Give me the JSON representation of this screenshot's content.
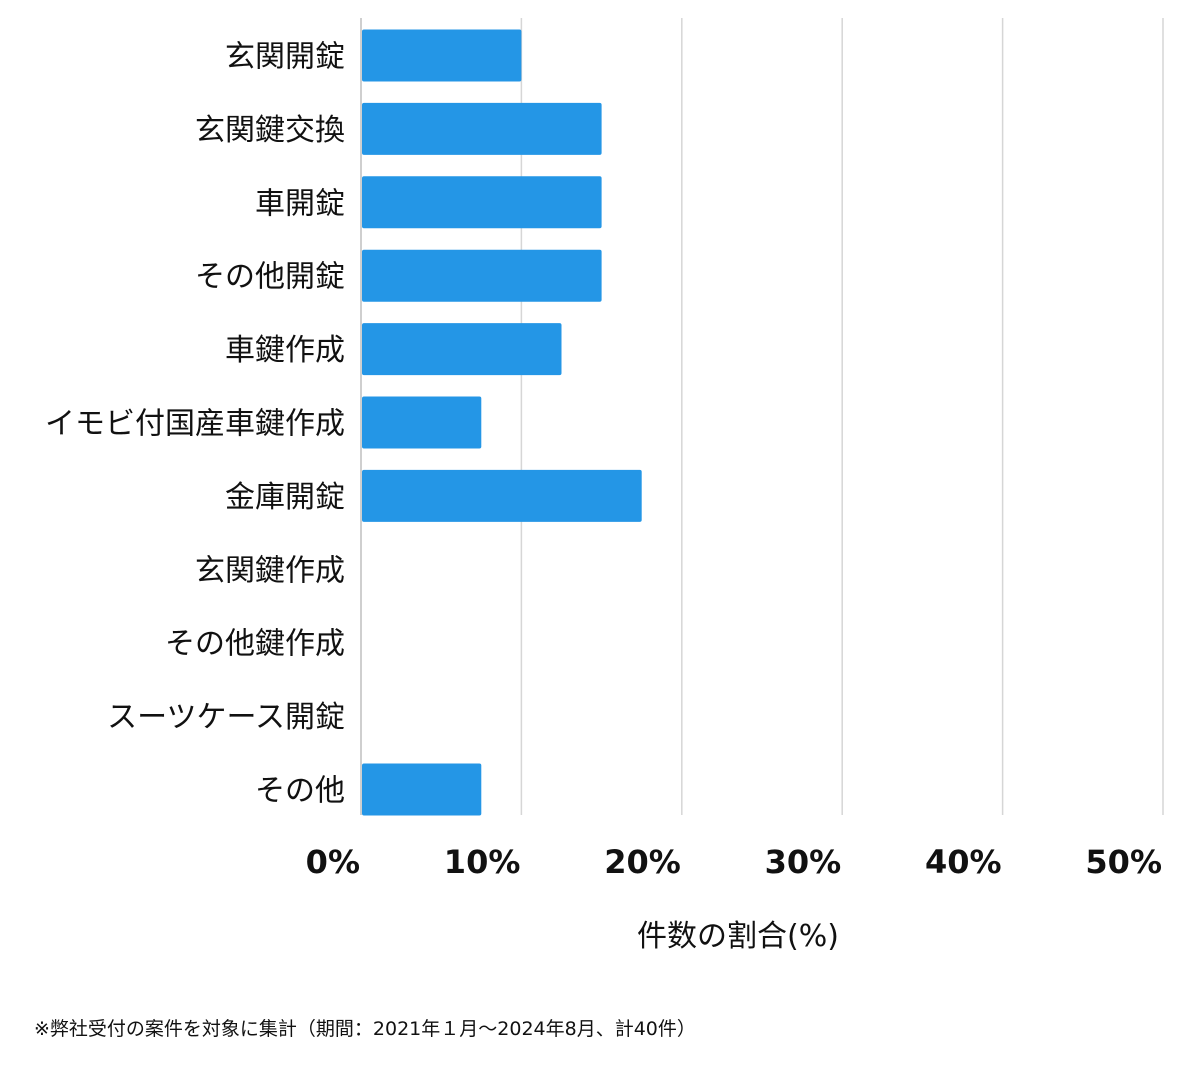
{
  "chart_data": {
    "type": "bar",
    "orientation": "horizontal",
    "categories": [
      "玄関開錠",
      "玄関鍵交換",
      "車開錠",
      "その他開錠",
      "車鍵作成",
      "イモビ付国産車鍵作成",
      "金庫開錠",
      "玄関鍵作成",
      "その他鍵作成",
      "スーツケース開錠",
      "その他"
    ],
    "values": [
      10,
      15,
      15,
      15,
      12.5,
      7.5,
      17.5,
      0,
      0,
      0,
      7.5
    ],
    "xlim": [
      0,
      50
    ],
    "xticks": [
      "0%",
      "10%",
      "20%",
      "30%",
      "40%",
      "50%"
    ],
    "xlabel": "件数の割合(%)",
    "grid": "vertical",
    "bar_color": "#2496e6"
  },
  "footnote": "※弊社受付の案件を対象に集計（期間：2021年１月〜2024年8月、計40件）"
}
